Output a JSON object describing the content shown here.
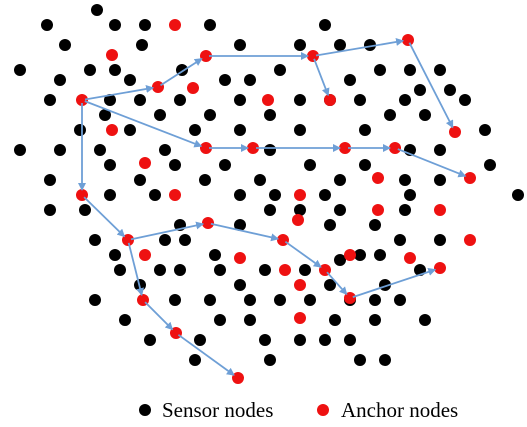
{
  "colors": {
    "sensor": "#000000",
    "anchor": "#ee1111",
    "path": "#6e9fd6",
    "background": "#ffffff"
  },
  "legend": {
    "sensor_label": "Sensor nodes",
    "anchor_label": "Anchor nodes"
  }
}
